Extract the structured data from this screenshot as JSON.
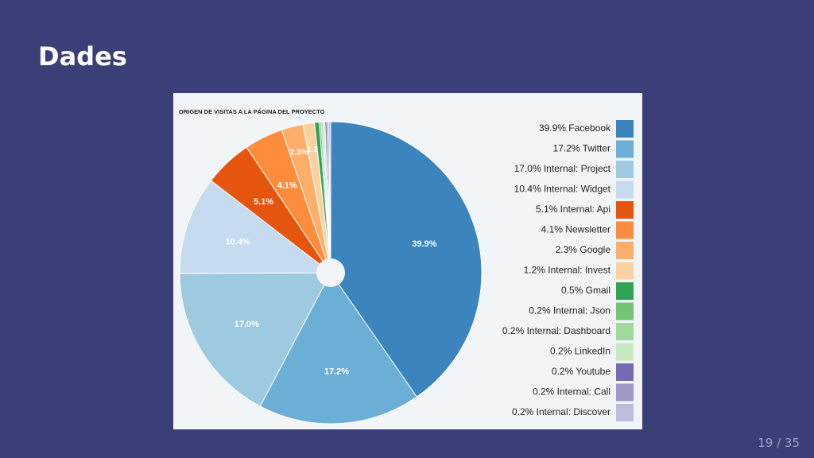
{
  "slide": {
    "title": "Dades",
    "page_current": "19",
    "page_sep": "/",
    "page_total": "35"
  },
  "chart_data": {
    "type": "pie",
    "title": "ORIGEN DE VISITAS A LA PÁGINA DEL PROYECTO",
    "legend_position": "right",
    "slices": [
      {
        "label": "39.9% Facebook",
        "value": 39.9,
        "slice_label": "39.9%",
        "color": "#3b84be"
      },
      {
        "label": "17.2% Twitter",
        "value": 17.2,
        "slice_label": "17.2%",
        "color": "#6baed6"
      },
      {
        "label": "17.0% Internal: Project",
        "value": 17.0,
        "slice_label": "17.0%",
        "color": "#9ecae1"
      },
      {
        "label": "10.4% Internal: Widget",
        "value": 10.4,
        "slice_label": "10.4%",
        "color": "#c6dbef"
      },
      {
        "label": "5.1% Internal: Api",
        "value": 5.1,
        "slice_label": "5.1%",
        "color": "#e6550d"
      },
      {
        "label": "4.1% Newsletter",
        "value": 4.1,
        "slice_label": "4.1%",
        "color": "#fd8d3c"
      },
      {
        "label": "2.3% Google",
        "value": 2.3,
        "slice_label": "2.3%",
        "color": "#fdae6b"
      },
      {
        "label": "1.2% Internal: Invest",
        "value": 1.2,
        "slice_label": "1.2",
        "color": "#fdd0a2"
      },
      {
        "label": "0.5% Gmail",
        "value": 0.5,
        "slice_label": "",
        "color": "#31a354"
      },
      {
        "label": "0.2% Internal: Json",
        "value": 0.2,
        "slice_label": "",
        "color": "#74c476"
      },
      {
        "label": "0.2% Internal: Dashboard",
        "value": 0.2,
        "slice_label": "",
        "color": "#a1d99b"
      },
      {
        "label": "0.2% LinkedIn",
        "value": 0.2,
        "slice_label": "",
        "color": "#c7e9c0"
      },
      {
        "label": "0.2% Youtube",
        "value": 0.2,
        "slice_label": "",
        "color": "#756bb1"
      },
      {
        "label": "0.2% Internal: Call",
        "value": 0.2,
        "slice_label": "",
        "color": "#9e9ac8"
      },
      {
        "label": "0.2% Internal: Discover",
        "value": 0.2,
        "slice_label": "",
        "color": "#bcbddc"
      }
    ]
  }
}
